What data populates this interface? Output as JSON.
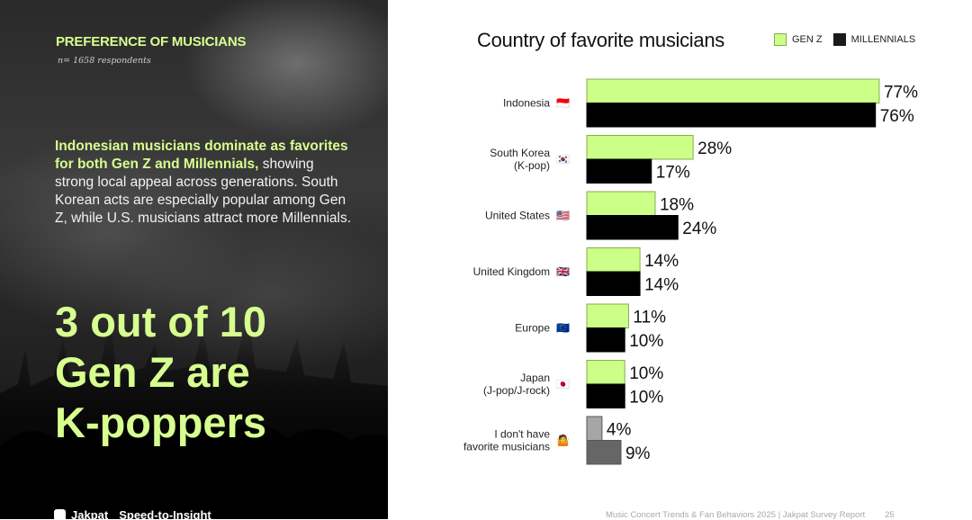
{
  "panel": {
    "eyebrow": "PREFERENCE OF MUSICIANS",
    "respondents": "n= 1658 respondents",
    "body_highlight": "Indonesian musicians dominate as favorites for both Gen Z and Millennials,",
    "body_rest": " showing strong local appeal across generations. South Korean acts are especially popular among Gen Z, while U.S. musicians attract more Millennials.",
    "big_stat_line1": "3 out of 10",
    "big_stat_line2": "Gen Z are",
    "big_stat_line3": "K-poppers",
    "brand_name": "Jakpat",
    "brand_tagline": "Speed-to-Insight"
  },
  "footer": {
    "report": "Music Concert Trends & Fan Behaviors 2025 | Jakpat Survey Report",
    "page": "25"
  },
  "colors": {
    "genz": "#ccff88",
    "genz_border": "#88aa55",
    "millennials": "#000000",
    "none_genz": "#a6a6a6",
    "none_millennials": "#666666",
    "accent": "#d7ff8f"
  },
  "chart_data": {
    "type": "bar",
    "orientation": "horizontal",
    "title": "Country of favorite musicians",
    "legend_placement": "top-right",
    "unit": "%",
    "categories": [
      {
        "label": "Indonesia",
        "sub": "",
        "flag": "🇮🇩"
      },
      {
        "label": "South Korea",
        "sub": "(K-pop)",
        "flag": "🇰🇷"
      },
      {
        "label": "United States",
        "sub": "",
        "flag": "🇺🇸"
      },
      {
        "label": "United Kingdom",
        "sub": "",
        "flag": "🇬🇧"
      },
      {
        "label": "Europe",
        "sub": "",
        "flag": "🇪🇺"
      },
      {
        "label": "Japan",
        "sub": "(J-pop/J-rock)",
        "flag": "🇯🇵"
      },
      {
        "label": "I don't have",
        "sub": "favorite musicians",
        "flag": "🤷"
      }
    ],
    "series": [
      {
        "name": "GEN Z",
        "values": [
          77,
          28,
          18,
          14,
          11,
          10,
          4
        ]
      },
      {
        "name": "MILLENNIALS",
        "values": [
          76,
          17,
          24,
          14,
          10,
          10,
          9
        ]
      }
    ],
    "xlim": [
      0,
      100
    ],
    "grid": false
  }
}
